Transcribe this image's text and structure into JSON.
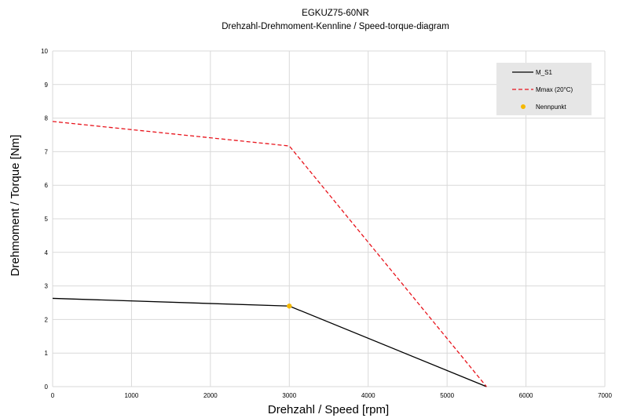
{
  "chart_data": {
    "type": "line",
    "title": "EGKUZ75-60NR",
    "subtitle": "Drehzahl-Drehmoment-Kennline / Speed-torque-diagram",
    "xlabel": "Drehzahl / Speed [rpm]",
    "ylabel": "Drehmoment / Torque [Nm]",
    "xlim": [
      0,
      7000
    ],
    "ylim": [
      0,
      10
    ],
    "xticks": [
      0,
      1000,
      2000,
      3000,
      4000,
      5000,
      6000,
      7000
    ],
    "yticks": [
      0,
      1,
      2,
      3,
      4,
      5,
      6,
      7,
      8,
      9,
      10
    ],
    "grid": true,
    "legend_position": "top-right",
    "series": [
      {
        "name": "M_S1",
        "style": "solid",
        "color": "#000000",
        "x": [
          0,
          3000,
          5500
        ],
        "y": [
          2.63,
          2.4,
          0
        ]
      },
      {
        "name": "Mmax (20°C)",
        "style": "dashed",
        "color": "#e8141c",
        "x": [
          0,
          3000,
          5500
        ],
        "y": [
          7.9,
          7.17,
          0
        ]
      },
      {
        "name": "Nennpunkt",
        "style": "marker",
        "color": "#f5b800",
        "x": [
          3000
        ],
        "y": [
          2.4
        ]
      }
    ]
  }
}
